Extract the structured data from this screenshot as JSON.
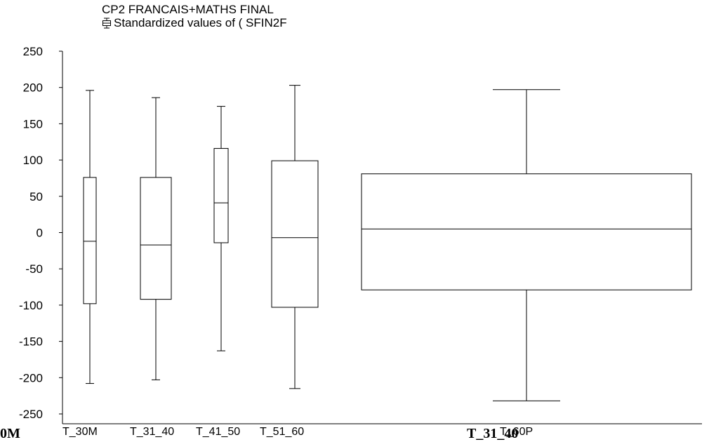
{
  "chart_data": {
    "type": "boxplot",
    "title": "CP2 FRANCAIS+MATHS FINAL",
    "subtitle": "Standardized values of ( SFIN2F",
    "legend_icon": "boxplot-glyph-icon",
    "ylim": [
      -250,
      250
    ],
    "yticks": [
      250,
      200,
      150,
      100,
      50,
      0,
      -50,
      -100,
      -150,
      -200,
      -250
    ],
    "categories": [
      "T_30M",
      "T_31_40",
      "T_41_50",
      "T_51_60",
      "T_60P"
    ],
    "boxes": [
      {
        "category": "T_30M",
        "min": -208,
        "q1": -98,
        "median": -12,
        "q3": 76,
        "max": 196
      },
      {
        "category": "T_31_40",
        "min": -203,
        "q1": -92,
        "median": -17,
        "q3": 76,
        "max": 186
      },
      {
        "category": "T_41_50",
        "min": -163,
        "q1": -14,
        "median": 41,
        "q3": 116,
        "max": 174
      },
      {
        "category": "T_51_60",
        "min": -215,
        "q1": -103,
        "median": -7,
        "q3": 99,
        "max": 203
      },
      {
        "category": "T_60P",
        "min": -232,
        "q1": -79,
        "median": 5,
        "q3": 81,
        "max": 197
      }
    ]
  },
  "footer": {
    "left_fragment": "0M",
    "right_fragment": "T_31_40"
  }
}
